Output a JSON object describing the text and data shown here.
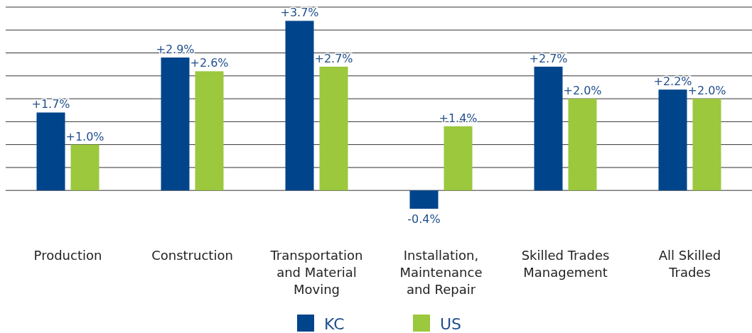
{
  "chart_data": {
    "type": "bar",
    "categories": [
      "Production",
      "Construction",
      "Transportation and Material Moving",
      "Installation, Maintenance and Repair",
      "Skilled Trades Management",
      "All Skilled Trades"
    ],
    "series": [
      {
        "name": "KC",
        "color": "#00458c",
        "values": [
          1.7,
          2.9,
          3.7,
          -0.4,
          2.7,
          2.2
        ],
        "value_labels": [
          "+1.7%",
          "+2.9%",
          "+3.7%",
          "-0.4%",
          "+2.7%",
          "+2.2%"
        ]
      },
      {
        "name": "US",
        "color": "#9bc83c",
        "values": [
          1.0,
          2.6,
          2.7,
          1.4,
          2.0,
          2.0
        ],
        "value_labels": [
          "+1.0%",
          "+2.6%",
          "+2.7%",
          "+1.4%",
          "+2.0%",
          "+2.0%"
        ]
      }
    ],
    "yticks": [
      {
        "value": 0,
        "label": null
      },
      {
        "value": 0.5,
        "label": null
      },
      {
        "value": 1,
        "label": null
      },
      {
        "value": 1.5,
        "label": null
      },
      {
        "value": 2,
        "label": null
      },
      {
        "value": 2.5,
        "label": null
      },
      {
        "value": 3,
        "label": null
      },
      {
        "value": 3.5,
        "label": null
      },
      {
        "value": 4,
        "label": null
      }
    ],
    "grid": "y",
    "tick_labels": "x",
    "legend": "bottom"
  }
}
